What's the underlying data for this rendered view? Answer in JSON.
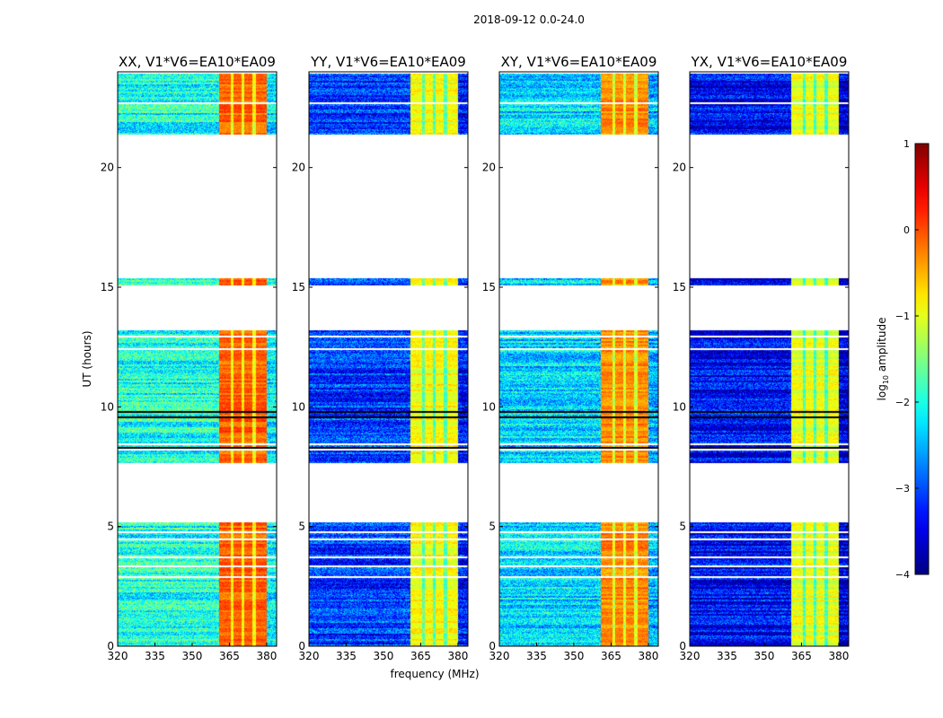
{
  "chart_data": {
    "type": "heatmap",
    "title": "2018-09-12 0.0-24.0",
    "xlabel": "frequency (MHz)",
    "ylabel": "UT (hours)",
    "xlim": [
      320,
      384
    ],
    "ylim": [
      0,
      24
    ],
    "xticks": [
      320,
      335,
      350,
      365,
      380
    ],
    "yticks": [
      0,
      5,
      10,
      15,
      20
    ],
    "data_time_ranges": [
      [
        0,
        5.2
      ],
      [
        7.65,
        13.2
      ],
      [
        15.1,
        15.35
      ],
      [
        21.35,
        24
      ]
    ],
    "high_band_mhz": [
      361,
      380
    ],
    "panels": [
      {
        "title": "XX, V1*V6=EA10*EA09",
        "low_band_log_amp": -2.0,
        "high_band_log_amp": -0.1
      },
      {
        "title": "YY, V1*V6=EA10*EA09",
        "low_band_log_amp": -3.1,
        "high_band_log_amp": -0.9
      },
      {
        "title": "XY, V1*V6=EA10*EA09",
        "low_band_log_amp": -2.3,
        "high_band_log_amp": -0.3
      },
      {
        "title": "YX, V1*V6=EA10*EA09",
        "low_band_log_amp": -3.4,
        "high_band_log_amp": -1.0
      }
    ],
    "colorbar": {
      "label": "log10 amplitude",
      "range": [
        -4,
        1
      ],
      "ticks": [
        1,
        0,
        -1,
        -2,
        -3,
        -4
      ],
      "tick_labels": [
        "1",
        "0",
        "−1",
        "−2",
        "−3",
        "−4"
      ],
      "colormap": "jet"
    }
  }
}
